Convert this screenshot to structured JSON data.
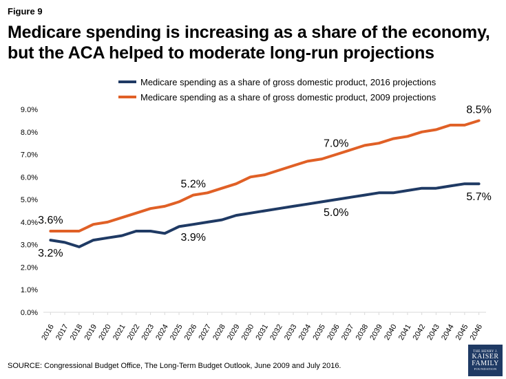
{
  "figure_label": "Figure 9",
  "title": "Medicare spending is increasing as a share of the economy, but the ACA helped to moderate long-run projections",
  "source": "SOURCE: Congressional Budget Office, The Long-Term Budget Outlook, June 2009 and July 2016.",
  "logo": {
    "line1": "THE HENRY J.",
    "line2": "KAISER",
    "line3": "FAMILY",
    "line4": "FOUNDATION"
  },
  "colors": {
    "series_2016": "#1f3a64",
    "series_2009": "#e06026",
    "axis": "#d9d9d9"
  },
  "chart_data": {
    "type": "line",
    "title": "Medicare spending is increasing as a share of the economy, but the ACA helped to moderate long-run projections",
    "xlabel": "",
    "ylabel": "",
    "ylim": [
      0,
      9
    ],
    "y_ticks": [
      "0.0%",
      "1.0%",
      "2.0%",
      "3.0%",
      "4.0%",
      "5.0%",
      "6.0%",
      "7.0%",
      "8.0%",
      "9.0%"
    ],
    "grid": false,
    "legend_position": "top",
    "x": [
      "2016",
      "2017",
      "2018",
      "2019",
      "2020",
      "2021",
      "2022",
      "2023",
      "2024",
      "2025",
      "2026",
      "2027",
      "2028",
      "2029",
      "2030",
      "2031",
      "2032",
      "2033",
      "2034",
      "2035",
      "2036",
      "2037",
      "2038",
      "2039",
      "2040",
      "2041",
      "2042",
      "2043",
      "2044",
      "2045",
      "2046"
    ],
    "series": [
      {
        "name": "Medicare spending as a share of gross domestic product, 2016 projections",
        "color": "#1f3a64",
        "values": [
          3.2,
          3.1,
          2.9,
          3.2,
          3.3,
          3.4,
          3.6,
          3.6,
          3.5,
          3.8,
          3.9,
          4.0,
          4.1,
          4.3,
          4.4,
          4.5,
          4.6,
          4.7,
          4.8,
          4.9,
          5.0,
          5.1,
          5.2,
          5.3,
          5.3,
          5.4,
          5.5,
          5.5,
          5.6,
          5.7,
          5.7
        ]
      },
      {
        "name": "Medicare spending as a share of gross domestic product, 2009 projections",
        "color": "#e06026",
        "values": [
          3.6,
          3.6,
          3.6,
          3.9,
          4.0,
          4.2,
          4.4,
          4.6,
          4.7,
          4.9,
          5.2,
          5.3,
          5.5,
          5.7,
          6.0,
          6.1,
          6.3,
          6.5,
          6.7,
          6.8,
          7.0,
          7.2,
          7.4,
          7.5,
          7.7,
          7.8,
          8.0,
          8.1,
          8.3,
          8.3,
          8.5
        ]
      }
    ],
    "annotations": [
      {
        "series": 1,
        "index": 0,
        "text": "3.6%",
        "placement": "above"
      },
      {
        "series": 1,
        "index": 10,
        "text": "5.2%",
        "placement": "above"
      },
      {
        "series": 1,
        "index": 20,
        "text": "7.0%",
        "placement": "above"
      },
      {
        "series": 1,
        "index": 30,
        "text": "8.5%",
        "placement": "above"
      },
      {
        "series": 0,
        "index": 0,
        "text": "3.2%",
        "placement": "below"
      },
      {
        "series": 0,
        "index": 10,
        "text": "3.9%",
        "placement": "below"
      },
      {
        "series": 0,
        "index": 20,
        "text": "5.0%",
        "placement": "below"
      },
      {
        "series": 0,
        "index": 30,
        "text": "5.7%",
        "placement": "below"
      }
    ]
  }
}
